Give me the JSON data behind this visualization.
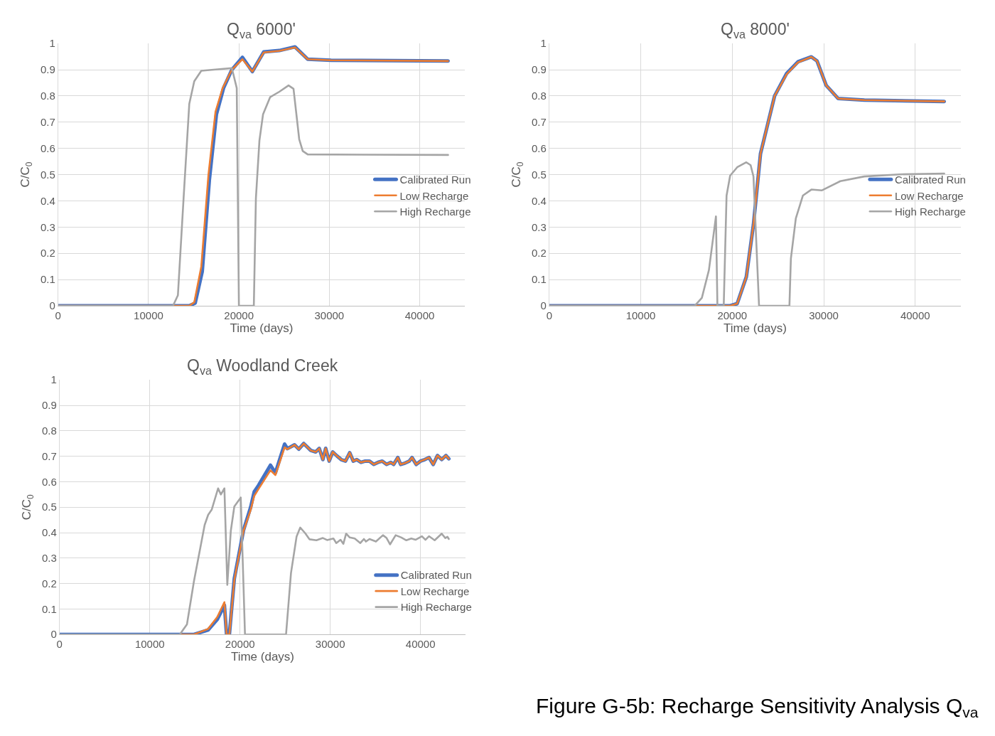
{
  "chart_data": [
    {
      "type": "line",
      "title": "Q$_{va}$ 6000'",
      "xlabel": "Time (days)",
      "ylabel": "C/C$_{0}$",
      "xlim": [
        0,
        45000
      ],
      "xticks": [
        0,
        10000,
        20000,
        30000,
        40000
      ],
      "ylim": [
        0,
        1
      ],
      "yticks": [
        0,
        0.1,
        0.2,
        0.3,
        0.4,
        0.5,
        0.6,
        0.7,
        0.8,
        0.9,
        1
      ],
      "grid": true,
      "legend": "right",
      "line_style": "solid",
      "marker": "none",
      "series": [
        {
          "name": "Calibrated Run",
          "color": "#4472c4",
          "x": [
            0,
            14500,
            15160,
            15940,
            16730,
            17510,
            18300,
            19220,
            20390,
            21490,
            22750,
            24470,
            26200,
            27610,
            30200,
            43140
          ],
          "values": [
            0,
            0,
            0.01,
            0.13,
            0.48,
            0.73,
            0.83,
            0.9,
            0.947,
            0.893,
            0.968,
            0.973,
            0.987,
            0.94,
            0.936,
            0.933
          ]
        },
        {
          "name": "Low Recharge",
          "color": "#ed7d31",
          "x": [
            0,
            14500,
            15060,
            15840,
            16630,
            17410,
            18200,
            19220,
            20390,
            21490,
            22750,
            24470,
            26200,
            27610,
            30200,
            43140
          ],
          "values": [
            0,
            0,
            0.013,
            0.15,
            0.5,
            0.74,
            0.83,
            0.9,
            0.94,
            0.893,
            0.966,
            0.972,
            0.985,
            0.94,
            0.936,
            0.933
          ]
        },
        {
          "name": "High Recharge",
          "color": "#a5a5a5",
          "x": [
            0,
            12710,
            13250,
            13880,
            14510,
            15060,
            15840,
            19220,
            19760,
            20000,
            21650,
            21880,
            22270,
            22670,
            23450,
            24470,
            25490,
            26040,
            26670,
            27060,
            27610,
            43140
          ],
          "values": [
            0,
            0,
            0.04,
            0.41,
            0.77,
            0.856,
            0.896,
            0.906,
            0.83,
            0,
            0,
            0.41,
            0.63,
            0.73,
            0.795,
            0.816,
            0.84,
            0.827,
            0.635,
            0.59,
            0.577,
            0.575
          ]
        }
      ]
    },
    {
      "type": "line",
      "title": "Q$_{va}$ 8000'",
      "xlabel": "Time (days)",
      "ylabel": "C/C$_{0}$",
      "xlim": [
        0,
        45000
      ],
      "xticks": [
        0,
        10000,
        20000,
        30000,
        40000
      ],
      "ylim": [
        0,
        1
      ],
      "yticks": [
        0,
        0.1,
        0.2,
        0.3,
        0.4,
        0.5,
        0.6,
        0.7,
        0.8,
        0.9,
        1
      ],
      "grid": true,
      "legend": "right",
      "line_style": "solid",
      "marker": "none",
      "series": [
        {
          "name": "Calibrated Run",
          "color": "#4472c4",
          "x": [
            0,
            19770,
            20540,
            21540,
            22320,
            23090,
            23860,
            24630,
            25950,
            27180,
            28650,
            29270,
            30270,
            31580,
            34440,
            43170
          ],
          "values": [
            0,
            0,
            0.008,
            0.11,
            0.31,
            0.58,
            0.69,
            0.8,
            0.886,
            0.93,
            0.949,
            0.933,
            0.84,
            0.79,
            0.784,
            0.779
          ]
        },
        {
          "name": "Low Recharge",
          "color": "#ed7d31",
          "x": [
            0,
            19770,
            20540,
            21540,
            22320,
            23090,
            23860,
            24630,
            25950,
            27180,
            28650,
            29270,
            30270,
            31580,
            34440,
            43170
          ],
          "values": [
            0,
            0,
            0.008,
            0.11,
            0.31,
            0.58,
            0.69,
            0.8,
            0.883,
            0.928,
            0.949,
            0.933,
            0.84,
            0.79,
            0.784,
            0.779
          ]
        },
        {
          "name": "High Recharge",
          "color": "#a5a5a5",
          "x": [
            0,
            15910,
            16680,
            17450,
            18220,
            18380,
            19070,
            19380,
            19770,
            20540,
            21540,
            22010,
            22320,
            22930,
            26250,
            26410,
            26950,
            27720,
            28650,
            29810,
            31810,
            34440,
            38300,
            43170
          ],
          "values": [
            0,
            0,
            0.03,
            0.136,
            0.341,
            0,
            0,
            0.42,
            0.496,
            0.528,
            0.547,
            0.536,
            0.493,
            0,
            0,
            0.18,
            0.333,
            0.42,
            0.443,
            0.44,
            0.475,
            0.493,
            0.501,
            0.504
          ]
        }
      ]
    },
    {
      "type": "line",
      "title": "Q$_{va}$ Woodland Creek",
      "xlabel": "Time (days)",
      "ylabel": "C/C$_{0}$",
      "xlim": [
        0,
        45000
      ],
      "xticks": [
        0,
        10000,
        20000,
        30000,
        40000
      ],
      "ylim": [
        0,
        1
      ],
      "yticks": [
        0,
        0.1,
        0.2,
        0.3,
        0.4,
        0.5,
        0.6,
        0.7,
        0.8,
        0.9,
        1
      ],
      "grid": true,
      "legend": "bottom right",
      "line_style": "solid",
      "marker": "none",
      "annotations": [
        "Figure G-5b: Recharge Sensitivity Analysis Q$_{va}$"
      ],
      "series": [
        {
          "name": "Calibrated Run",
          "color": "#4472c4",
          "x": [
            0,
            14900,
            16470,
            17490,
            18270,
            18510,
            18820,
            19370,
            20390,
            21180,
            21570,
            22040,
            23370,
            23920,
            24940,
            25250,
            26040,
            26510,
            27060,
            27840,
            28390,
            28780,
            29180,
            29490,
            29880,
            30270,
            30750,
            31220,
            31690,
            32160,
            32550,
            32940,
            33410,
            33880,
            34350,
            34820,
            35290,
            35760,
            36240,
            36710,
            37020,
            37490,
            37800,
            38270,
            38750,
            39060,
            39530,
            40000,
            40470,
            40940,
            41410,
            41880,
            42350,
            42820,
            43140
          ],
          "values": [
            0,
            0,
            0.018,
            0.06,
            0.115,
            0,
            0,
            0.22,
            0.41,
            0.5,
            0.56,
            0.585,
            0.665,
            0.635,
            0.748,
            0.73,
            0.745,
            0.728,
            0.75,
            0.723,
            0.717,
            0.731,
            0.687,
            0.731,
            0.681,
            0.717,
            0.701,
            0.687,
            0.681,
            0.714,
            0.681,
            0.687,
            0.676,
            0.681,
            0.681,
            0.668,
            0.676,
            0.681,
            0.668,
            0.676,
            0.668,
            0.695,
            0.668,
            0.673,
            0.681,
            0.695,
            0.668,
            0.681,
            0.687,
            0.695,
            0.668,
            0.703,
            0.687,
            0.703,
            0.69
          ]
        },
        {
          "name": "Low Recharge",
          "color": "#ed7d31",
          "x": [
            0,
            14900,
            16470,
            17490,
            18270,
            18510,
            18820,
            19370,
            20390,
            21180,
            21570,
            22040,
            23370,
            23920,
            24940,
            25250,
            26040,
            26510,
            27060,
            27840,
            28390,
            28780,
            29180,
            29490,
            29880,
            30270,
            30750,
            31220,
            31690,
            32160,
            32550,
            32940,
            33410,
            33880,
            34350,
            34820,
            35290,
            35760,
            36240,
            36710,
            37020,
            37490,
            37800,
            38270,
            38750,
            39060,
            39530,
            40000,
            40470,
            40940,
            41410,
            41880,
            42350,
            42820,
            43140
          ],
          "values": [
            0,
            0,
            0.022,
            0.069,
            0.127,
            0,
            0,
            0.214,
            0.407,
            0.489,
            0.544,
            0.571,
            0.645,
            0.626,
            0.735,
            0.728,
            0.745,
            0.728,
            0.75,
            0.723,
            0.717,
            0.731,
            0.687,
            0.731,
            0.681,
            0.717,
            0.701,
            0.687,
            0.681,
            0.714,
            0.681,
            0.687,
            0.676,
            0.681,
            0.681,
            0.668,
            0.676,
            0.681,
            0.668,
            0.676,
            0.668,
            0.695,
            0.668,
            0.673,
            0.681,
            0.695,
            0.668,
            0.681,
            0.687,
            0.695,
            0.668,
            0.703,
            0.687,
            0.703,
            0.69
          ]
        },
        {
          "name": "High Recharge",
          "color": "#a5a5a5",
          "x": [
            0,
            13330,
            14120,
            14900,
            16080,
            16470,
            16860,
            17570,
            17880,
            18270,
            18590,
            18980,
            19370,
            20080,
            20390,
            20550,
            25100,
            25650,
            26270,
            26670,
            27220,
            27690,
            28470,
            29180,
            29650,
            30350,
            30670,
            31140,
            31450,
            31760,
            32160,
            32710,
            33330,
            33730,
            33960,
            34350,
            35060,
            35840,
            36240,
            36630,
            37250,
            37880,
            38430,
            38980,
            39450,
            40160,
            40550,
            40940,
            41570,
            42350,
            42750,
            42980,
            43140
          ],
          "values": [
            0,
            0,
            0.04,
            0.21,
            0.43,
            0.47,
            0.49,
            0.574,
            0.55,
            0.574,
            0.195,
            0.407,
            0.503,
            0.538,
            0.187,
            0,
            0,
            0.242,
            0.385,
            0.42,
            0.398,
            0.374,
            0.37,
            0.379,
            0.371,
            0.377,
            0.359,
            0.372,
            0.356,
            0.396,
            0.381,
            0.377,
            0.359,
            0.375,
            0.365,
            0.375,
            0.365,
            0.39,
            0.379,
            0.354,
            0.39,
            0.381,
            0.37,
            0.377,
            0.372,
            0.386,
            0.372,
            0.386,
            0.37,
            0.396,
            0.379,
            0.384,
            0.375
          ]
        }
      ]
    }
  ]
}
